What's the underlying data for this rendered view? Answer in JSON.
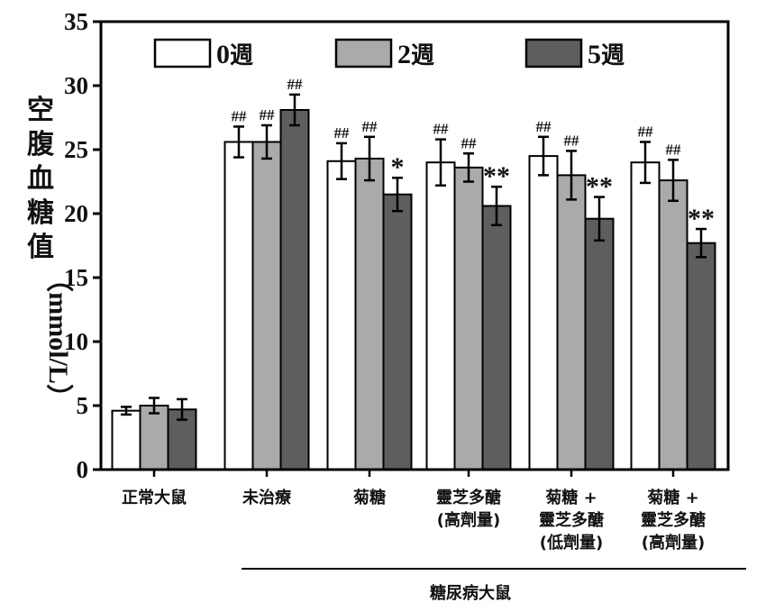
{
  "chart_data": {
    "type": "bar",
    "ylabel_chars": [
      "空",
      "腹",
      "血",
      "糖",
      "值"
    ],
    "ylabel_unit": "（mmol/L）",
    "ylim": [
      0,
      35
    ],
    "yticks": [
      0,
      5,
      10,
      15,
      20,
      25,
      30,
      35
    ],
    "categories": [
      [
        "正常大鼠"
      ],
      [
        "未治療"
      ],
      [
        "菊糖"
      ],
      [
        "靈芝多醣",
        "(高劑量)"
      ],
      [
        "菊糖 +",
        "靈芝多醣",
        "(低劑量)"
      ],
      [
        "菊糖 +",
        "靈芝多醣",
        "(高劑量)"
      ]
    ],
    "group_label": "糖尿病大鼠",
    "series": [
      {
        "name": "0週",
        "legend_num": "0",
        "legend_unit": "週",
        "color": "#ffffff",
        "values": [
          4.6,
          25.6,
          24.1,
          24.0,
          24.5,
          24.0
        ],
        "errors": [
          0.3,
          1.2,
          1.4,
          1.8,
          1.5,
          1.6
        ],
        "labels": [
          "",
          "##",
          "##",
          "##",
          "##",
          "##"
        ]
      },
      {
        "name": "2週",
        "legend_num": "2",
        "legend_unit": "週",
        "color": "#aaaaaa",
        "values": [
          5.0,
          25.6,
          24.3,
          23.6,
          23.0,
          22.6
        ],
        "errors": [
          0.6,
          1.3,
          1.7,
          1.1,
          1.9,
          1.6
        ],
        "labels": [
          "",
          "##",
          "##",
          "##",
          "##",
          "##"
        ]
      },
      {
        "name": "5週",
        "legend_num": "5",
        "legend_unit": "週",
        "color": "#5e5e5e",
        "values": [
          4.7,
          28.1,
          21.5,
          20.6,
          19.6,
          17.7
        ],
        "errors": [
          0.8,
          1.2,
          1.3,
          1.5,
          1.7,
          1.1
        ],
        "labels": [
          "",
          "##",
          "*",
          "**",
          "**",
          "**"
        ]
      }
    ]
  }
}
